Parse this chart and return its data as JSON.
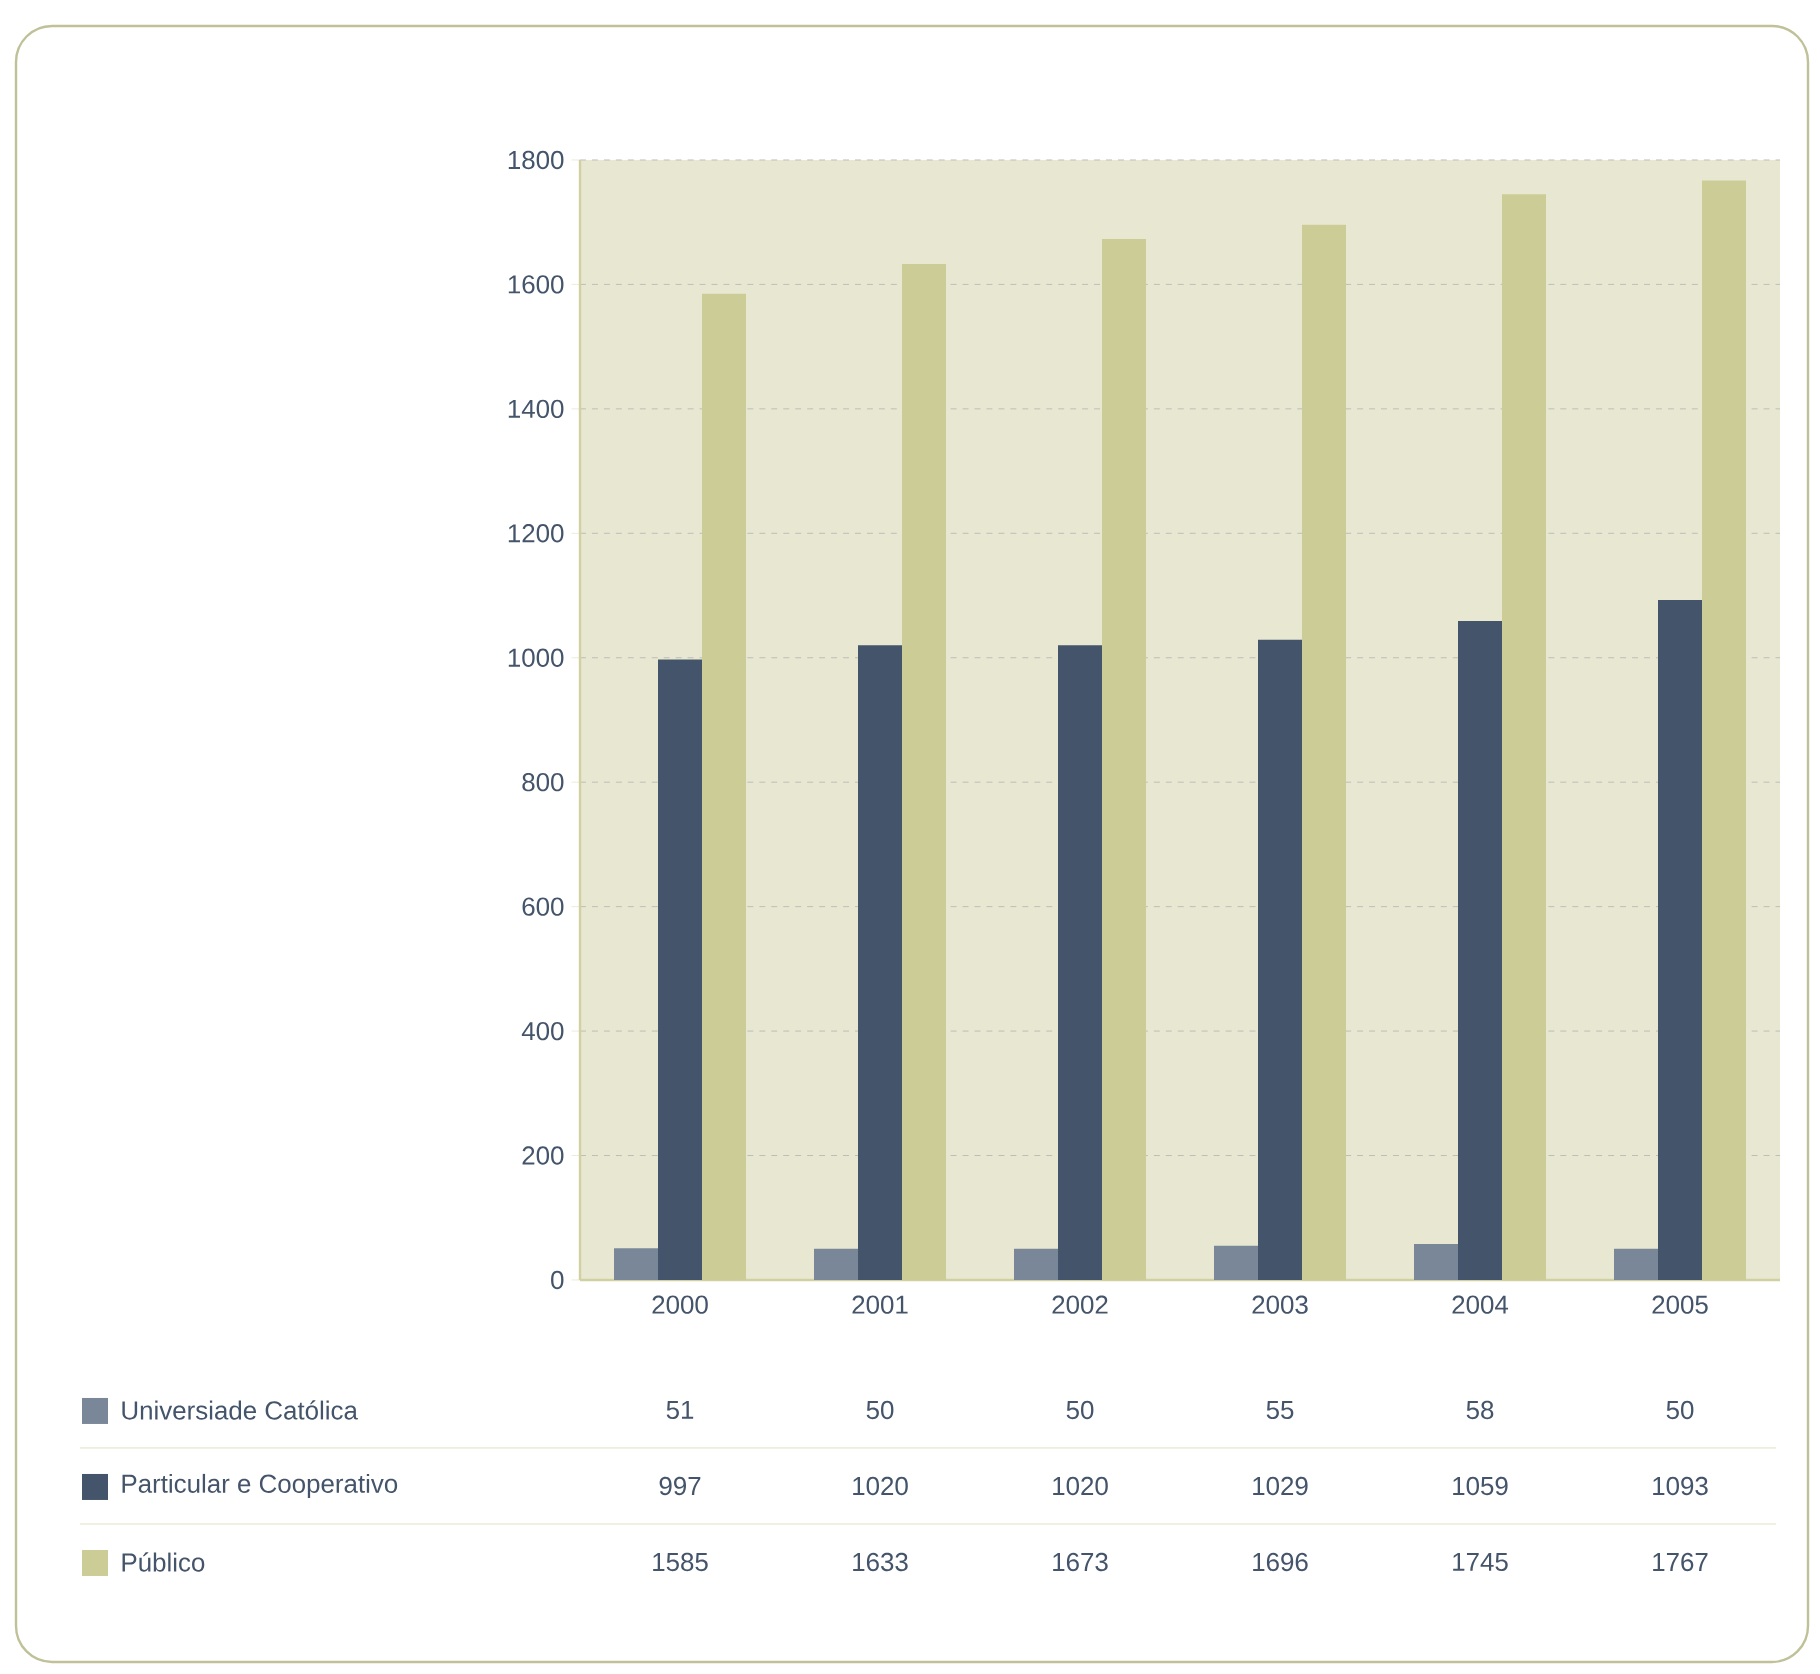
{
  "chart_data": {
    "type": "bar",
    "categories": [
      "2000",
      "2001",
      "2002",
      "2003",
      "2004",
      "2005"
    ],
    "series": [
      {
        "name": "Universiade Católica",
        "color": "#7a8799",
        "values": [
          51,
          50,
          50,
          55,
          58,
          50
        ]
      },
      {
        "name": "Particular e Cooperativo",
        "color": "#44546a",
        "values": [
          997,
          1020,
          1020,
          1029,
          1059,
          1093
        ]
      },
      {
        "name": "Público",
        "color": "#cccc96",
        "values": [
          1585,
          1633,
          1673,
          1696,
          1745,
          1767
        ]
      }
    ],
    "ylim": [
      0,
      1800
    ],
    "yticks": [
      0,
      200,
      400,
      600,
      800,
      1000,
      1200,
      1400,
      1600,
      1800
    ],
    "grid": "y",
    "legend": "bottom",
    "data_labels": true
  }
}
